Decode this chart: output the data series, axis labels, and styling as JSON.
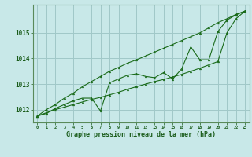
{
  "x": [
    0,
    1,
    2,
    3,
    4,
    5,
    6,
    7,
    8,
    9,
    10,
    11,
    12,
    13,
    14,
    15,
    16,
    17,
    18,
    19,
    20,
    21,
    22,
    23
  ],
  "y_main": [
    1011.75,
    1011.85,
    1012.05,
    1012.2,
    1012.35,
    1012.45,
    1012.45,
    1011.95,
    1013.05,
    1013.2,
    1013.35,
    1013.4,
    1013.3,
    1013.25,
    1013.45,
    1013.2,
    1013.6,
    1014.45,
    1013.95,
    1013.95,
    1015.05,
    1015.5,
    1015.7,
    1015.85
  ],
  "y_upper": [
    1011.75,
    1012.0,
    1012.2,
    1012.45,
    1012.65,
    1012.9,
    1013.1,
    1013.3,
    1013.5,
    1013.65,
    1013.82,
    1013.95,
    1014.1,
    1014.25,
    1014.4,
    1014.55,
    1014.7,
    1014.85,
    1015.0,
    1015.2,
    1015.4,
    1015.55,
    1015.72,
    1015.85
  ],
  "y_lower": [
    1011.75,
    1011.88,
    1012.0,
    1012.1,
    1012.2,
    1012.3,
    1012.4,
    1012.48,
    1012.58,
    1012.68,
    1012.8,
    1012.9,
    1013.0,
    1013.1,
    1013.18,
    1013.28,
    1013.38,
    1013.5,
    1013.62,
    1013.75,
    1013.88,
    1015.0,
    1015.55,
    1015.85
  ],
  "line_color": "#1a6b1a",
  "bg_color": "#c8e8e8",
  "grid_color": "#a0c8c8",
  "label_color": "#1a5c1a",
  "ylabel_ticks": [
    1012,
    1013,
    1014,
    1015
  ],
  "xlabel_ticks": [
    0,
    1,
    2,
    3,
    4,
    5,
    6,
    7,
    8,
    9,
    10,
    11,
    12,
    13,
    14,
    15,
    16,
    17,
    18,
    19,
    20,
    21,
    22,
    23
  ],
  "xlabel": "Graphe pression niveau de la mer (hPa)",
  "ylim": [
    1011.5,
    1016.1
  ],
  "xlim": [
    -0.5,
    23.5
  ]
}
